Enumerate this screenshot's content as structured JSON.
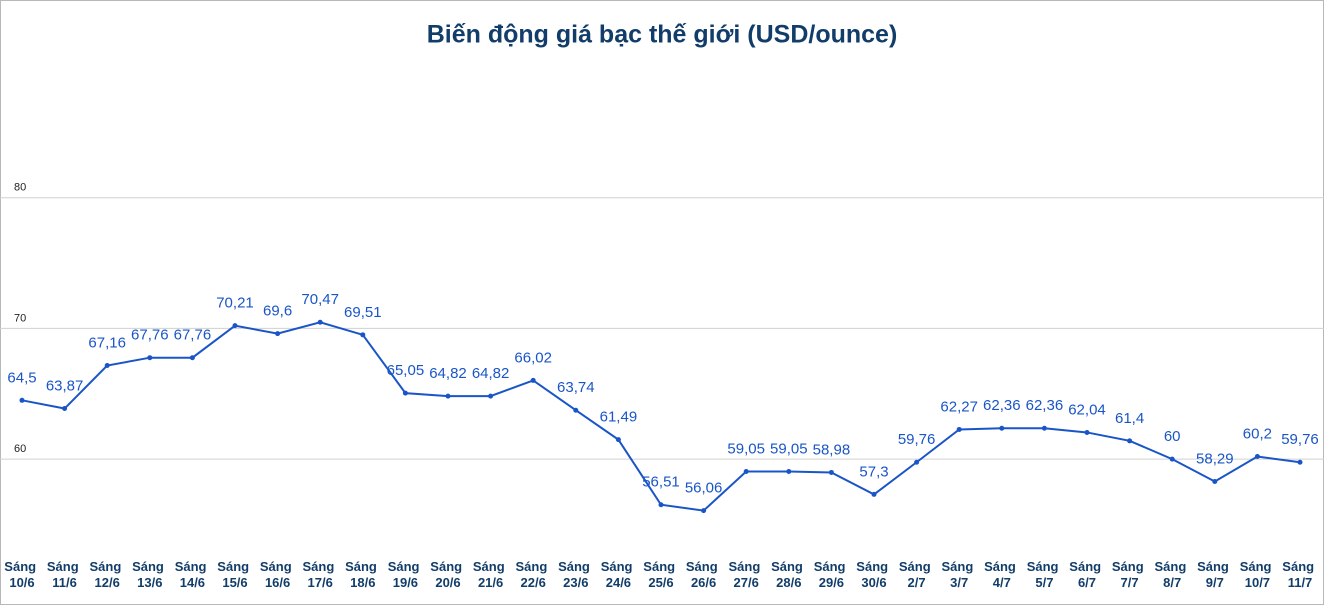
{
  "chart_data": {
    "type": "line",
    "title": "Biến động giá bạc thế giới (USD/ounce)",
    "categories": [
      "Sáng 10/6",
      "Sáng 11/6",
      "Sáng 12/6",
      "Sáng 13/6",
      "Sáng 14/6",
      "Sáng 15/6",
      "Sáng 16/6",
      "Sáng 17/6",
      "Sáng 18/6",
      "Sáng 19/6",
      "Sáng 20/6",
      "Sáng 21/6",
      "Sáng 22/6",
      "Sáng 23/6",
      "Sáng 24/6",
      "Sáng 25/6",
      "Sáng 26/6",
      "Sáng 27/6",
      "Sáng 28/6",
      "Sáng 29/6",
      "Sáng 30/6",
      "Sáng 2/7",
      "Sáng 3/7",
      "Sáng 4/7",
      "Sáng 5/7",
      "Sáng 6/7",
      "Sáng 7/7",
      "Sáng 8/7",
      "Sáng 9/7",
      "Sáng 10/7",
      "Sáng 11/7"
    ],
    "series": [
      {
        "color": "#1a55c8",
        "values": [
          64.5,
          63.87,
          67.16,
          67.76,
          67.76,
          70.21,
          69.6,
          70.47,
          69.51,
          65.05,
          64.82,
          64.82,
          66.02,
          63.74,
          61.49,
          56.51,
          56.06,
          59.05,
          59.05,
          58.98,
          57.3,
          59.76,
          62.27,
          62.36,
          62.36,
          62.04,
          61.4,
          60,
          58.29,
          60.2,
          59.76
        ],
        "value_labels": [
          "64,5",
          "63,87",
          "67,16",
          "67,76",
          "67,76",
          "70,21",
          "69,6",
          "70,47",
          "69,51",
          "65,05",
          "64,82",
          "64,82",
          "66,02",
          "63,74",
          "61,49",
          "56,51",
          "56,06",
          "59,05",
          "59,05",
          "58,98",
          "57,3",
          "59,76",
          "62,27",
          "62,36",
          "62,36",
          "62,04",
          "61,4",
          "60",
          "58,29",
          "60,2",
          "59,76"
        ]
      }
    ],
    "ylim": [
      53.2,
      90
    ],
    "yticks": [
      60,
      70,
      80
    ],
    "grid": true
  }
}
